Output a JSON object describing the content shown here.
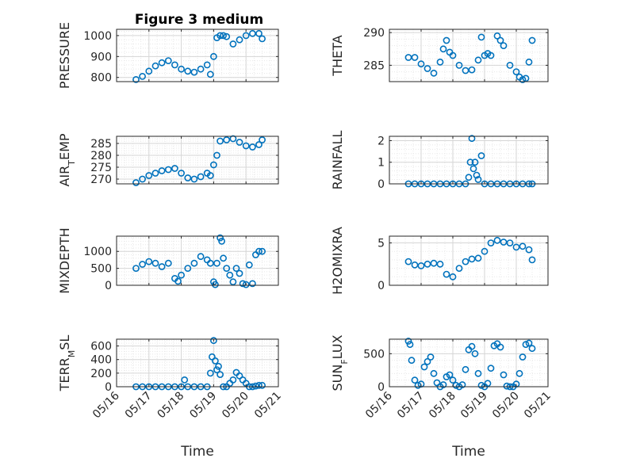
{
  "figure": {
    "title": "Figure 3 medium"
  },
  "colors": {
    "marker": "#0072BD",
    "axis": "#262626",
    "grid": "#d6d6d6",
    "minor_grid": "#e8e8e8"
  },
  "chart_data": [
    {
      "type": "scatter",
      "ylabel": "PRESSURE",
      "title": "Figure 3 medium",
      "xlim": [
        "2015-05-16",
        "2015-05-21"
      ],
      "ylim": [
        780,
        1030
      ],
      "yticks": [
        {
          "v": 800,
          "t": "800"
        },
        {
          "v": 900,
          "t": "900"
        },
        {
          "v": 1000,
          "t": "1000"
        }
      ],
      "xticks": [],
      "xlabel": "",
      "grid": true,
      "series": [
        {
          "x": [
            16.6,
            16.8,
            17.0,
            17.2,
            17.4,
            17.6,
            17.8,
            18.0,
            18.2,
            18.4,
            18.6,
            18.8,
            18.9,
            19.0,
            19.1,
            19.2,
            19.3,
            19.4,
            19.6,
            19.8,
            20.0,
            20.2,
            20.4,
            20.5
          ],
          "y": [
            790,
            805,
            830,
            855,
            870,
            880,
            860,
            840,
            830,
            825,
            840,
            860,
            815,
            900,
            990,
            1000,
            1000,
            995,
            960,
            980,
            1000,
            1010,
            1010,
            985
          ]
        }
      ]
    },
    {
      "type": "scatter",
      "ylabel": "THETA",
      "xlim": [
        "2015-05-16",
        "2015-05-21"
      ],
      "ylim": [
        282.5,
        290.5
      ],
      "yticks": [
        {
          "v": 285,
          "t": "285"
        },
        {
          "v": 290,
          "t": "290"
        }
      ],
      "xticks": [],
      "xlabel": "",
      "grid": true,
      "series": [
        {
          "x": [
            16.6,
            16.8,
            17.0,
            17.2,
            17.4,
            17.6,
            17.7,
            17.8,
            17.9,
            18.0,
            18.2,
            18.4,
            18.6,
            18.8,
            18.9,
            19.0,
            19.1,
            19.2,
            19.4,
            19.5,
            19.6,
            19.8,
            20.0,
            20.1,
            20.2,
            20.3,
            20.4,
            20.5
          ],
          "y": [
            286.2,
            286.2,
            285.2,
            284.5,
            283.8,
            285.5,
            287.5,
            288.8,
            287.0,
            286.5,
            285.0,
            284.2,
            284.3,
            285.8,
            289.3,
            286.5,
            286.8,
            286.5,
            289.5,
            288.8,
            288.0,
            285.0,
            284.0,
            283.2,
            282.8,
            283.0,
            285.5,
            288.8
          ]
        }
      ]
    },
    {
      "type": "scatter",
      "ylabel": "AIR_TEMP",
      "xlim": [
        "2015-05-16",
        "2015-05-21"
      ],
      "ylim": [
        268,
        288
      ],
      "yticks": [
        {
          "v": 270,
          "t": "270"
        },
        {
          "v": 275,
          "t": "275"
        },
        {
          "v": 280,
          "t": "280"
        },
        {
          "v": 285,
          "t": "285"
        }
      ],
      "xticks": [],
      "xlabel": "",
      "grid": true,
      "series": [
        {
          "x": [
            16.6,
            16.8,
            17.0,
            17.2,
            17.4,
            17.6,
            17.8,
            18.0,
            18.2,
            18.4,
            18.6,
            18.8,
            18.9,
            19.0,
            19.1,
            19.2,
            19.4,
            19.6,
            19.8,
            20.0,
            20.2,
            20.4,
            20.5
          ],
          "y": [
            268.5,
            270,
            271.5,
            272.5,
            273.5,
            274,
            274.5,
            272.5,
            270.5,
            270,
            271,
            272.5,
            271.5,
            276,
            280,
            286,
            286.5,
            287,
            285.5,
            284,
            283.5,
            284.5,
            286.5
          ]
        }
      ]
    },
    {
      "type": "scatter",
      "ylabel": "RAINFALL",
      "xlim": [
        "2015-05-16",
        "2015-05-21"
      ],
      "ylim": [
        0,
        2.2
      ],
      "yticks": [
        {
          "v": 0,
          "t": "0"
        },
        {
          "v": 1,
          "t": "1"
        },
        {
          "v": 2,
          "t": "2"
        }
      ],
      "xticks": [],
      "xlabel": "",
      "grid": true,
      "series": [
        {
          "x": [
            16.6,
            16.8,
            17.0,
            17.2,
            17.4,
            17.6,
            17.8,
            18.0,
            18.2,
            18.4,
            18.5,
            18.55,
            18.6,
            18.65,
            18.7,
            18.75,
            18.8,
            18.9,
            19.0,
            19.2,
            19.4,
            19.6,
            19.8,
            20.0,
            20.2,
            20.4,
            20.5
          ],
          "y": [
            0,
            0,
            0,
            0,
            0,
            0,
            0,
            0,
            0,
            0,
            0.3,
            1.0,
            2.1,
            0.7,
            1.0,
            0.4,
            0.2,
            1.3,
            0,
            0,
            0,
            0,
            0,
            0,
            0,
            0,
            0
          ]
        }
      ]
    },
    {
      "type": "scatter",
      "ylabel": "MIXDEPTH",
      "xlim": [
        "2015-05-16",
        "2015-05-21"
      ],
      "ylim": [
        0,
        1450
      ],
      "yticks": [
        {
          "v": 0,
          "t": "0"
        },
        {
          "v": 500,
          "t": "500"
        },
        {
          "v": 1000,
          "t": "1000"
        }
      ],
      "xticks": [],
      "xlabel": "",
      "grid": true,
      "series": [
        {
          "x": [
            16.6,
            16.8,
            17.0,
            17.2,
            17.4,
            17.6,
            17.8,
            17.9,
            18.0,
            18.2,
            18.4,
            18.6,
            18.8,
            18.9,
            19.0,
            19.05,
            19.1,
            19.2,
            19.25,
            19.3,
            19.4,
            19.5,
            19.6,
            19.7,
            19.8,
            19.9,
            20.0,
            20.1,
            20.2,
            20.3,
            20.4,
            20.5
          ],
          "y": [
            500,
            620,
            700,
            650,
            550,
            650,
            200,
            120,
            300,
            500,
            650,
            850,
            750,
            650,
            100,
            20,
            650,
            1400,
            1300,
            800,
            500,
            300,
            100,
            500,
            350,
            50,
            20,
            600,
            50,
            900,
            1000,
            1000
          ]
        }
      ]
    },
    {
      "type": "scatter",
      "ylabel": "H2OMIXRA",
      "xlim": [
        "2015-05-16",
        "2015-05-21"
      ],
      "ylim": [
        0,
        5.8
      ],
      "yticks": [
        {
          "v": 0,
          "t": "0"
        },
        {
          "v": 5,
          "t": "5"
        }
      ],
      "xticks": [],
      "xlabel": "",
      "grid": true,
      "series": [
        {
          "x": [
            16.6,
            16.8,
            17.0,
            17.2,
            17.4,
            17.6,
            17.8,
            18.0,
            18.2,
            18.4,
            18.6,
            18.8,
            19.0,
            19.2,
            19.4,
            19.6,
            19.8,
            20.0,
            20.2,
            20.4,
            20.5
          ],
          "y": [
            2.8,
            2.4,
            2.3,
            2.5,
            2.6,
            2.5,
            1.3,
            1.0,
            2.0,
            2.8,
            3.1,
            3.2,
            4.0,
            5.0,
            5.3,
            5.1,
            5.0,
            4.5,
            4.6,
            4.2,
            3.0
          ]
        }
      ]
    },
    {
      "type": "scatter",
      "ylabel": "TERR_MSL",
      "xlim": [
        "2015-05-16",
        "2015-05-21"
      ],
      "ylim": [
        0,
        700
      ],
      "yticks": [
        {
          "v": 0,
          "t": "0"
        },
        {
          "v": 200,
          "t": "200"
        },
        {
          "v": 400,
          "t": "400"
        },
        {
          "v": 600,
          "t": "600"
        }
      ],
      "xticks": [
        "05/16",
        "05/17",
        "05/18",
        "05/19",
        "05/20",
        "05/21"
      ],
      "xlabel": "Time",
      "grid": true,
      "series": [
        {
          "x": [
            16.6,
            16.8,
            17.0,
            17.2,
            17.4,
            17.6,
            17.8,
            18.0,
            18.1,
            18.2,
            18.4,
            18.6,
            18.8,
            18.9,
            18.95,
            19.0,
            19.05,
            19.1,
            19.15,
            19.2,
            19.3,
            19.4,
            19.5,
            19.6,
            19.7,
            19.8,
            19.9,
            20.0,
            20.1,
            20.2,
            20.3,
            20.4,
            20.5
          ],
          "y": [
            0,
            0,
            0,
            0,
            0,
            0,
            0,
            0,
            100,
            0,
            0,
            0,
            0,
            200,
            440,
            680,
            380,
            250,
            300,
            180,
            0,
            0,
            50,
            100,
            210,
            160,
            100,
            50,
            0,
            0,
            10,
            20,
            20
          ]
        }
      ]
    },
    {
      "type": "scatter",
      "ylabel": "SUN_FLUX",
      "xlim": [
        "2015-05-16",
        "2015-05-21"
      ],
      "ylim": [
        0,
        720
      ],
      "yticks": [
        {
          "v": 0,
          "t": "0"
        },
        {
          "v": 500,
          "t": "500"
        }
      ],
      "xticks": [
        "05/16",
        "05/17",
        "05/18",
        "05/19",
        "05/20",
        "05/21"
      ],
      "xlabel": "Time",
      "grid": true,
      "series": [
        {
          "x": [
            16.6,
            16.65,
            16.7,
            16.8,
            16.9,
            17.0,
            17.1,
            17.2,
            17.3,
            17.4,
            17.5,
            17.6,
            17.7,
            17.8,
            17.9,
            18.0,
            18.1,
            18.2,
            18.3,
            18.4,
            18.5,
            18.6,
            18.7,
            18.8,
            18.9,
            19.0,
            19.1,
            19.2,
            19.3,
            19.4,
            19.5,
            19.6,
            19.7,
            19.8,
            19.9,
            20.0,
            20.1,
            20.2,
            20.3,
            20.4,
            20.5
          ],
          "y": [
            690,
            640,
            400,
            100,
            20,
            40,
            300,
            380,
            450,
            200,
            60,
            0,
            30,
            150,
            180,
            100,
            20,
            0,
            30,
            260,
            560,
            610,
            500,
            200,
            20,
            0,
            50,
            280,
            620,
            650,
            600,
            180,
            10,
            0,
            0,
            40,
            200,
            450,
            640,
            660,
            580
          ]
        }
      ]
    }
  ]
}
